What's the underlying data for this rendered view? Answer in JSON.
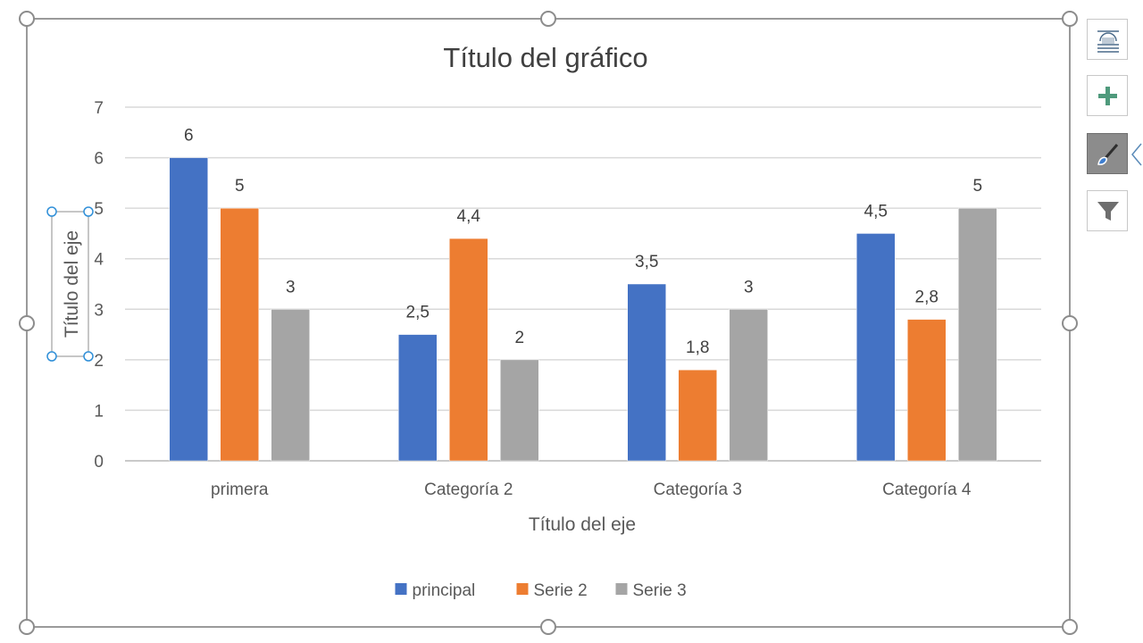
{
  "chart_data": {
    "type": "bar",
    "title": "Título del gráfico",
    "xlabel": "Título del eje",
    "ylabel": "Título del eje",
    "categories": [
      "primera",
      "Categoría 2",
      "Categoría 3",
      "Categoría 4"
    ],
    "series": [
      {
        "name": "principal",
        "color": "#4472C4",
        "values": [
          6,
          2.5,
          3.5,
          4.5
        ],
        "labels": [
          "6",
          "2,5",
          "3,5",
          "4,5"
        ]
      },
      {
        "name": "Serie 2",
        "color": "#ED7D31",
        "values": [
          5,
          4.4,
          1.8,
          2.8
        ],
        "labels": [
          "5",
          "4,4",
          "1,8",
          "2,8"
        ]
      },
      {
        "name": "Serie 3",
        "color": "#A5A5A5",
        "values": [
          3,
          2,
          3,
          5
        ],
        "labels": [
          "3",
          "2",
          "3",
          "5"
        ]
      }
    ],
    "ylim": [
      0,
      7
    ],
    "yticks": [
      "0",
      "1",
      "2",
      "3",
      "4",
      "5",
      "6",
      "7"
    ],
    "grid": true,
    "legend_position": "bottom",
    "data_labels": true
  },
  "side_buttons": [
    {
      "name": "layout-options-icon"
    },
    {
      "name": "chart-elements-plus-icon"
    },
    {
      "name": "chart-styles-brush-icon",
      "active": true
    },
    {
      "name": "chart-filters-funnel-icon"
    }
  ]
}
